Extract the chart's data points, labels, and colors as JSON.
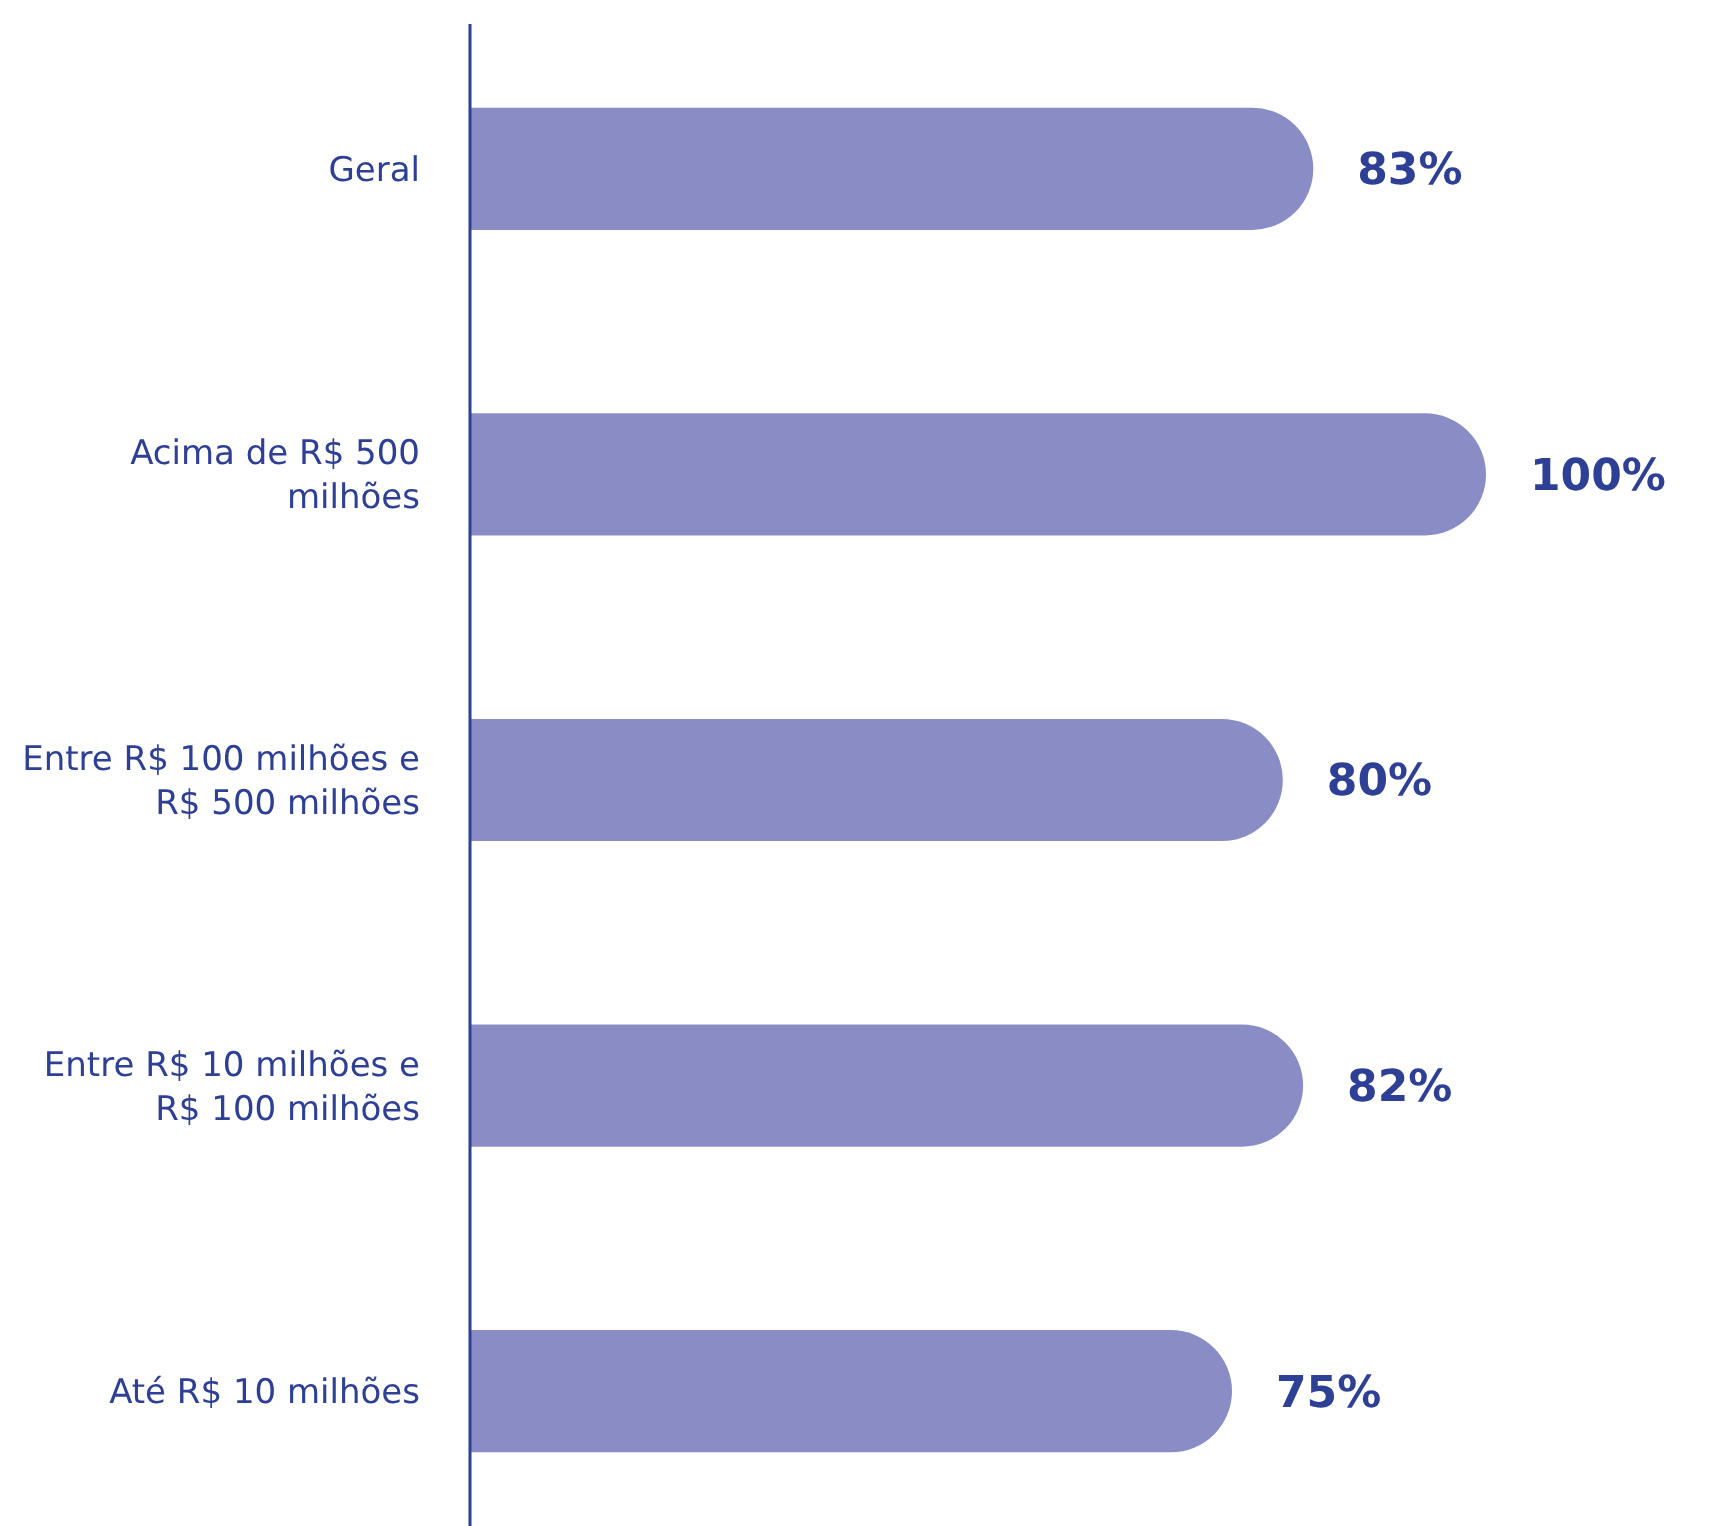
{
  "chart_data": {
    "type": "bar",
    "orientation": "horizontal",
    "categories": [
      "Geral",
      "Acima de R$ 500 milhões",
      "Entre R$ 100 milhões e R$ 500 milhões",
      "Entre R$ 10 milhões e R$ 100 milhões",
      "Até R$ 10 milhões"
    ],
    "values": [
      83,
      100,
      80,
      82,
      75
    ],
    "value_labels": [
      "83%",
      "100%",
      "80%",
      "82%",
      "75%"
    ],
    "color": "#8a8dc5"
  }
}
